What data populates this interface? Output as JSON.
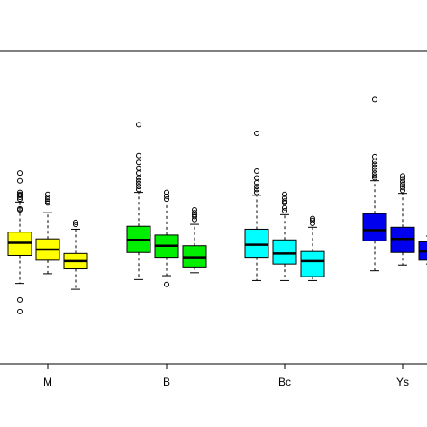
{
  "chart_data": {
    "type": "box",
    "categories": [
      "M",
      "B",
      "Bc",
      "Ys"
    ],
    "group_colors": [
      "#ffff00",
      "#00ee00",
      "#00ffff",
      "#0000ee"
    ],
    "grid": false,
    "legend": "none",
    "boxes": [
      {
        "category": "M",
        "sub": 1,
        "whisker_low": -1.1,
        "q1": 0.35,
        "median": 1.0,
        "q3": 1.55,
        "whisker_high": 3.1,
        "outliers": [
          -2.55,
          -1.95,
          2.7,
          2.75,
          3.25,
          3.35,
          3.45,
          3.5,
          3.6,
          4.2,
          4.6
        ]
      },
      {
        "category": "M",
        "sub": 2,
        "whisker_low": -0.6,
        "q1": 0.1,
        "median": 0.65,
        "q3": 1.2,
        "whisker_high": 2.55,
        "outliers": [
          3.05,
          3.15,
          3.25,
          3.35,
          3.5
        ]
      },
      {
        "category": "M",
        "sub": 3,
        "whisker_low": -1.4,
        "q1": -0.35,
        "median": 0.05,
        "q3": 0.45,
        "whisker_high": 1.7,
        "outliers": [
          1.95,
          2.05
        ]
      },
      {
        "category": "B",
        "sub": 1,
        "whisker_low": -0.9,
        "q1": 0.5,
        "median": 1.15,
        "q3": 1.85,
        "whisker_high": 3.6,
        "outliers": [
          3.75,
          3.9,
          4.05,
          4.2,
          4.35,
          4.6,
          4.85,
          5.15,
          5.5,
          7.1
        ]
      },
      {
        "category": "B",
        "sub": 2,
        "whisker_low": -0.7,
        "q1": 0.25,
        "median": 0.85,
        "q3": 1.4,
        "whisker_high": 3.0,
        "outliers": [
          -1.15,
          3.25,
          3.4,
          3.6
        ]
      },
      {
        "category": "B",
        "sub": 3,
        "whisker_low": -0.55,
        "q1": -0.25,
        "median": 0.25,
        "q3": 0.85,
        "whisker_high": 1.95,
        "outliers": [
          2.2,
          2.35,
          2.45,
          2.55,
          2.7
        ]
      },
      {
        "category": "Bc",
        "sub": 1,
        "whisker_low": -0.95,
        "q1": 0.25,
        "median": 0.9,
        "q3": 1.7,
        "whisker_high": 3.45,
        "outliers": [
          3.6,
          3.75,
          3.9,
          4.1,
          4.35,
          4.7,
          6.65
        ]
      },
      {
        "category": "Bc",
        "sub": 2,
        "whisker_low": -0.95,
        "q1": -0.1,
        "median": 0.45,
        "q3": 1.15,
        "whisker_high": 2.45,
        "outliers": [
          2.65,
          2.8,
          3.05,
          3.15,
          3.3,
          3.5
        ]
      },
      {
        "category": "Bc",
        "sub": 3,
        "whisker_low": -0.95,
        "q1": -0.75,
        "median": 0.05,
        "q3": 0.55,
        "whisker_high": 1.8,
        "outliers": [
          2.0,
          2.15,
          2.25
        ]
      },
      {
        "category": "Ys",
        "sub": 1,
        "whisker_low": -0.45,
        "q1": 1.1,
        "median": 1.65,
        "q3": 2.5,
        "whisker_high": 4.2,
        "outliers": [
          4.35,
          4.45,
          4.6,
          4.75,
          4.9,
          5.05,
          5.2,
          5.45,
          8.4
        ]
      },
      {
        "category": "Ys",
        "sub": 2,
        "whisker_low": -0.15,
        "q1": 0.5,
        "median": 1.2,
        "q3": 1.8,
        "whisker_high": 3.55,
        "outliers": [
          3.7,
          3.85,
          4.0,
          4.15,
          4.3,
          4.45
        ]
      },
      {
        "category": "Ys",
        "sub": 3,
        "whisker_low": -0.1,
        "q1": 0.1,
        "median": 0.55,
        "q3": 1.05,
        "whisker_high": 1.35,
        "outliers": []
      }
    ]
  }
}
